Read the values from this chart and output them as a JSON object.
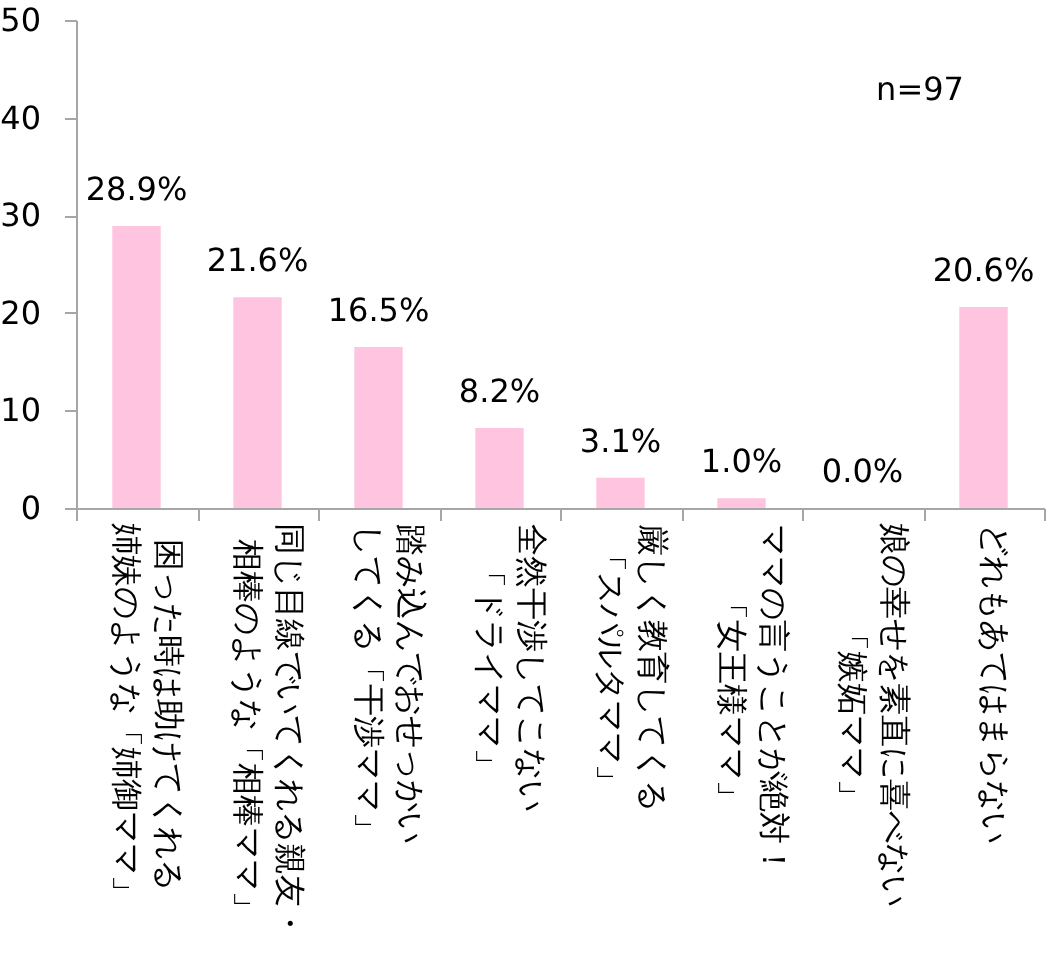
{
  "chart_data": {
    "type": "bar",
    "categories": [
      "困った時は助けてくれる姉妹のような「姉御ママ」",
      "同じ目線でいてくれる親友・相棒のような「相棒ママ」",
      "踏み込んでおせっかいしてくる「干渉ママ」",
      "全然干渉してこない「ドライママ」",
      "厳しく教育してくる「スパルタママ」",
      "ママの言うことが絶対！「女王様ママ」",
      "娘の幸せを素直に喜べない「嫉妬ママ」",
      "どれもあてはまらない"
    ],
    "values": [
      28.9,
      21.6,
      16.5,
      8.2,
      3.1,
      1.0,
      0.0,
      20.6
    ],
    "value_labels": [
      "28.9%",
      "21.6%",
      "16.5%",
      "8.2%",
      "3.1%",
      "1.0%",
      "0.0%",
      "20.6%"
    ],
    "color": "#ffc4df",
    "ylim": [
      0,
      50
    ],
    "yticks": [
      0,
      10,
      20,
      30,
      40,
      50
    ],
    "annotations": [
      "n=97"
    ]
  }
}
